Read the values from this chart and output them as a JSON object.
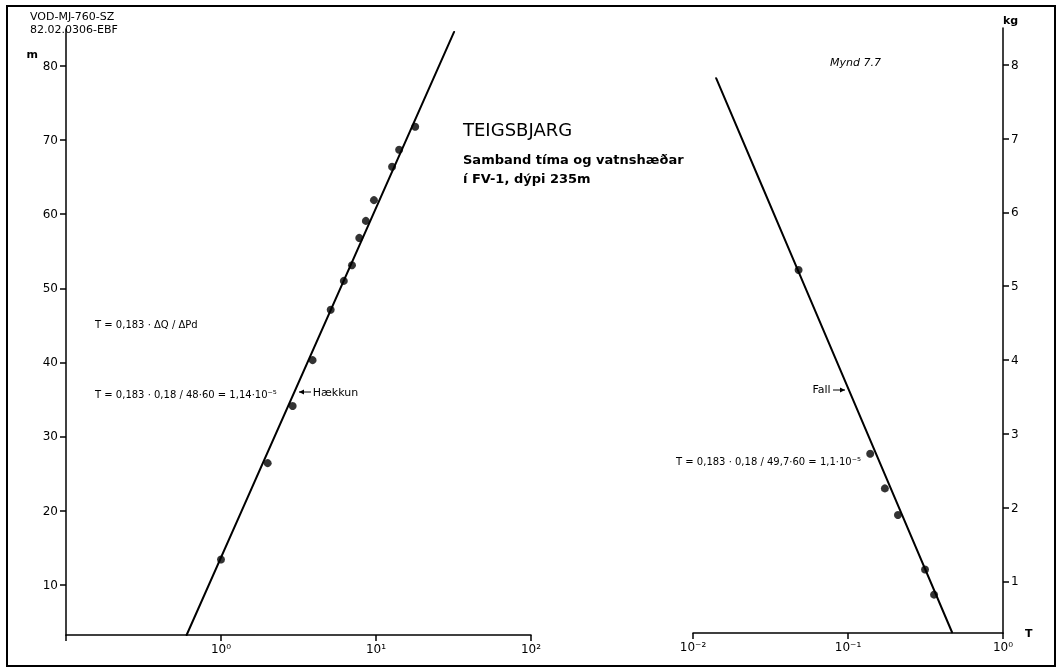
{
  "chart_data": [
    {
      "type": "scatter",
      "title": "TEIGSBJARG",
      "subtitle": "Samband tíma og vatnshæðar\ní FV-1, dýpi 235m",
      "ylabel": "m",
      "log": "x",
      "grid": false,
      "xlim": [
        0.1,
        100
      ],
      "xticks": [
        {
          "value": 0.1,
          "label": null
        },
        {
          "value": 1,
          "label": "10⁰"
        },
        {
          "value": 10,
          "label": "10¹"
        },
        {
          "value": 100,
          "label": "10²"
        }
      ],
      "ylim": [
        3.2,
        85
      ],
      "yticks": [
        10,
        20,
        30,
        40,
        50,
        60,
        70,
        80
      ],
      "series": [
        {
          "type": "scatter",
          "marker": "circle",
          "color": "#000000",
          "x": [
            1.0,
            2.0,
            2.9,
            3.9,
            5.1,
            6.2,
            7.0,
            7.8,
            8.6,
            9.7,
            12.7,
            14.1,
            17.9
          ],
          "values": [
            13.4,
            26.4,
            34.1,
            40.3,
            47.1,
            51.0,
            53.1,
            56.8,
            59.1,
            61.9,
            66.4,
            68.7,
            71.8
          ]
        },
        {
          "type": "line",
          "marker": "none",
          "color": "#000000",
          "line_style": "solid",
          "x": [
            0.6,
            31.9
          ],
          "values": [
            3.2,
            84.6
          ]
        }
      ],
      "annotations": [
        "VOD-MJ-760-SZ\n82.02.0306-EBF",
        "T = 0,183 · ΔQ / ΔPd",
        "T = 0,183 · 0,18 / 48·60 = 1,14·10⁻⁵",
        {
          "text": "Hækkun",
          "x": 2.99,
          "y": 36
        }
      ]
    },
    {
      "type": "scatter",
      "xlabel": "T",
      "ylabel": "kg",
      "log": "x",
      "grid": false,
      "xlim": [
        0.01,
        1
      ],
      "xticks": [
        {
          "value": 0.01,
          "label": "10⁻²"
        },
        {
          "value": 0.1,
          "label": "10⁻¹"
        },
        {
          "value": 1,
          "label": "10⁰"
        }
      ],
      "ylim": [
        0.3,
        8.5
      ],
      "yticks": [
        1,
        2,
        3,
        4,
        5,
        6,
        7,
        8
      ],
      "series": [
        {
          "type": "scatter",
          "marker": "circle",
          "color": "#000000",
          "x": [
            0.048,
            0.139,
            0.173,
            0.21,
            0.314,
            0.359
          ],
          "values": [
            5.22,
            2.73,
            2.26,
            1.9,
            1.16,
            0.82
          ]
        },
        {
          "type": "line",
          "marker": "none",
          "color": "#000000",
          "line_style": "solid",
          "x": [
            0.0141,
            0.469
          ],
          "values": [
            7.82,
            0.31
          ]
        }
      ],
      "annotations": [
        "Mynd 7.7",
        "T = 0,183 · 0,18 / 49,7·60 = 1,1·10⁻⁵",
        {
          "text": "Fall",
          "x": 0.101,
          "y": 3.6
        }
      ]
    }
  ]
}
